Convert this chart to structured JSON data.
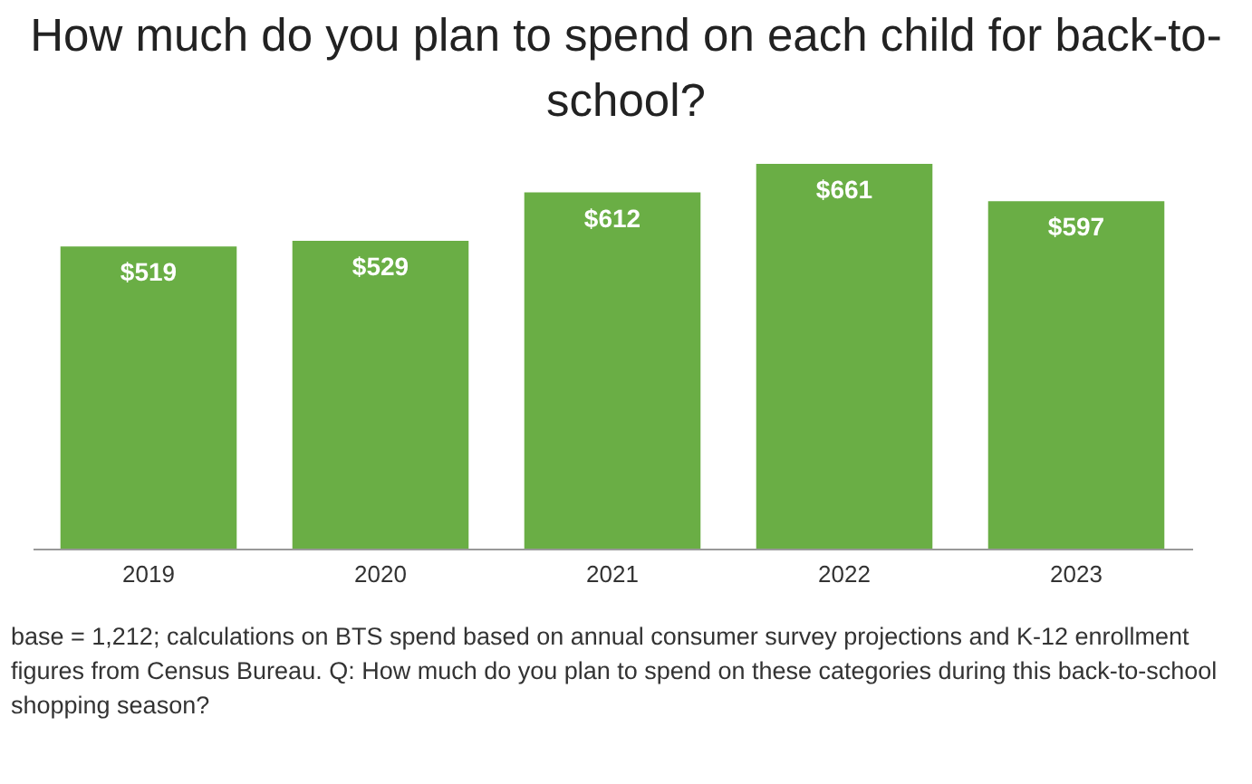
{
  "chart_data": {
    "type": "bar",
    "title": "How much do you plan to spend on each child for back-to-school?",
    "categories": [
      "2019",
      "2020",
      "2021",
      "2022",
      "2023"
    ],
    "values": [
      519,
      529,
      612,
      661,
      597
    ],
    "value_labels": [
      "$519",
      "$529",
      "$612",
      "$661",
      "$597"
    ],
    "color": "#6aae45",
    "annotations": [
      "base = 1,212; calculations on BTS spend based on annual consumer survey projections and K-12 enrollment figures from Census Bureau. Q: How much do you plan to spend on these categories during this back-to-school shopping season?"
    ]
  }
}
